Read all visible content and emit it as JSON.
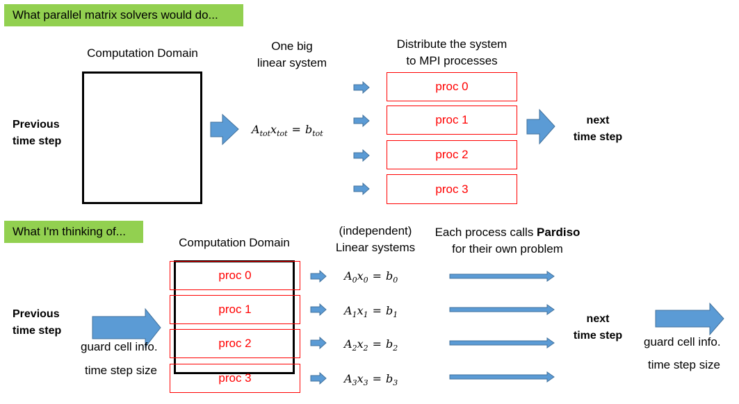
{
  "top": {
    "banner": "What parallel matrix solvers would do...",
    "domain_label": "Computation Domain",
    "previous": [
      "Previous",
      "time step"
    ],
    "one_big": [
      "One big",
      "linear system"
    ],
    "equation": {
      "A": "A",
      "x": "x",
      "b": "b",
      "sub": "tot",
      "eq": "="
    },
    "distribute": [
      "Distribute the system",
      "to MPI processes"
    ],
    "procs": [
      "proc 0",
      "proc 1",
      "proc 2",
      "proc 3"
    ],
    "next": [
      "next",
      "time step"
    ]
  },
  "bottom": {
    "banner": "What I'm thinking of...",
    "domain_label": "Computation Domain",
    "independent": [
      "(independent)",
      "Linear systems"
    ],
    "pardiso_pre": "Each process calls ",
    "pardiso_bold": "Pardiso",
    "pardiso_line2": "for their own problem",
    "previous": [
      "Previous",
      "time step"
    ],
    "guard": "guard cell info.",
    "tss": "time step size",
    "procs": [
      "proc 0",
      "proc 1",
      "proc 2",
      "proc 3"
    ],
    "equations": [
      {
        "A": "A",
        "x": "x",
        "b": "b",
        "sub": "0",
        "eq": "="
      },
      {
        "A": "A",
        "x": "x",
        "b": "b",
        "sub": "1",
        "eq": "="
      },
      {
        "A": "A",
        "x": "x",
        "b": "b",
        "sub": "2",
        "eq": "="
      },
      {
        "A": "A",
        "x": "x",
        "b": "b",
        "sub": "3",
        "eq": "="
      }
    ],
    "next": [
      "next",
      "time step"
    ],
    "guard_right": "guard cell info.",
    "tss_right": "time step size"
  },
  "colors": {
    "banner": "#92d050",
    "arrow": "#5b9bd5",
    "proc": "#ff0000"
  }
}
